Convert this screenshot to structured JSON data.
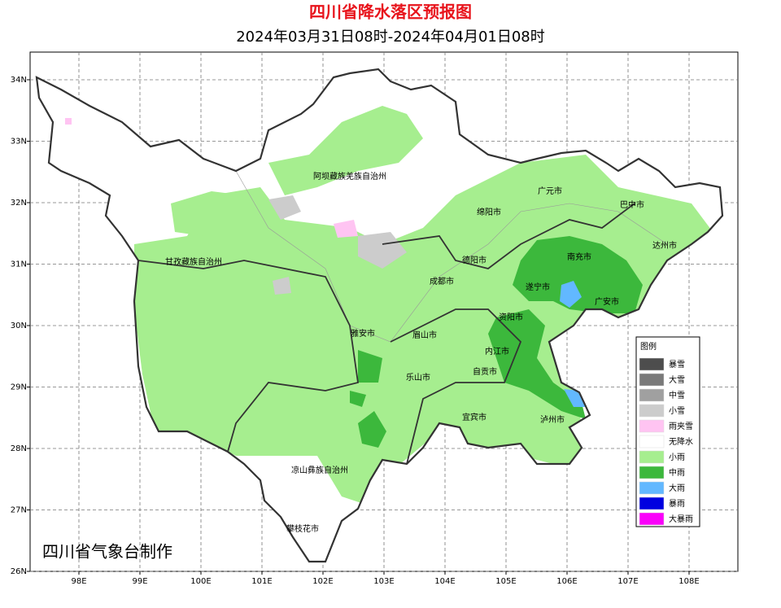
{
  "header": {
    "title": "四川省降水落区预报图",
    "subtitle": "2024年03月31日08时-2024年04月01日08时"
  },
  "map": {
    "lon_range": [
      97.2,
      108.8
    ],
    "lat_range": [
      26,
      34.45
    ],
    "lon_ticks": [
      {
        "value": 98,
        "label": "98E"
      },
      {
        "value": 99,
        "label": "99E"
      },
      {
        "value": 100,
        "label": "100E"
      },
      {
        "value": 101,
        "label": "101E"
      },
      {
        "value": 102,
        "label": "102E"
      },
      {
        "value": 103,
        "label": "103E"
      },
      {
        "value": 104,
        "label": "104E"
      },
      {
        "value": 105,
        "label": "105E"
      },
      {
        "value": 106,
        "label": "106E"
      },
      {
        "value": 107,
        "label": "107E"
      },
      {
        "value": 108,
        "label": "108E"
      }
    ],
    "lat_ticks": [
      {
        "value": 26,
        "label": "26N"
      },
      {
        "value": 27,
        "label": "27N"
      },
      {
        "value": 28,
        "label": "28N"
      },
      {
        "value": 29,
        "label": "29N"
      },
      {
        "value": 30,
        "label": "30N"
      },
      {
        "value": 31,
        "label": "31N"
      },
      {
        "value": 32,
        "label": "32N"
      },
      {
        "value": 33,
        "label": "33N"
      },
      {
        "value": 34,
        "label": "34N"
      }
    ],
    "cities": [
      "阿坝藏族羌族自治州",
      "广元市",
      "巴中市",
      "绵阳市",
      "达州市",
      "甘孜藏族自治州",
      "德阳市",
      "南充市",
      "成都市",
      "遂宁市",
      "广安市",
      "资阳市",
      "雅安市",
      "眉山市",
      "内江市",
      "乐山市",
      "自贡市",
      "宜宾市",
      "泸州市",
      "凉山彝族自治州",
      "攀枝花市"
    ]
  },
  "legend": {
    "title": "图例",
    "items": [
      {
        "name": "暴雪",
        "color": "#4d4d4d"
      },
      {
        "name": "大雪",
        "color": "#7a7a7a"
      },
      {
        "name": "中雪",
        "color": "#a0a0a0"
      },
      {
        "name": "小雪",
        "color": "#cccccc"
      },
      {
        "name": "雨夹雪",
        "color": "#ffc4f2"
      },
      {
        "name": "无降水",
        "color": "#ffffff"
      },
      {
        "name": "小雨",
        "color": "#a6ee8f"
      },
      {
        "name": "中雨",
        "color": "#3cb83c"
      },
      {
        "name": "大雨",
        "color": "#62b8ff"
      },
      {
        "name": "暴雨",
        "color": "#0000e0"
      },
      {
        "name": "大暴雨",
        "color": "#fa00fa"
      }
    ]
  },
  "credit": "四川省气象台制作"
}
